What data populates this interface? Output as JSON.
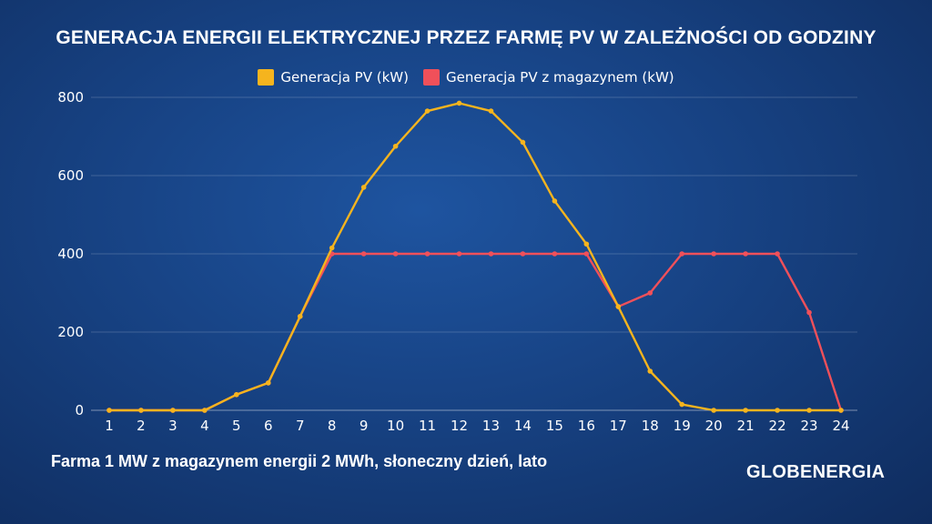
{
  "header": {
    "title": "GENERACJA ENERGII ELEKTRYCZNEJ PRZEZ FARMĘ PV W ZALEŻNOŚCI OD GODZINY"
  },
  "footer": {
    "subtitle": "Farma 1 MW z magazynem energii 2 MWh, słoneczny dzień, lato",
    "logo": "GLOBENERGIA"
  },
  "colors": {
    "background": "#174283",
    "pv": "#f5b41e",
    "pv_storage": "#f0505a"
  },
  "chart_data": {
    "type": "line",
    "title": "GENERACJA ENERGII ELEKTRYCZNEJ PRZEZ FARMĘ PV W ZALEŻNOŚCI OD GODZINY",
    "xlabel": "",
    "ylabel": "",
    "x": [
      1,
      2,
      3,
      4,
      5,
      6,
      7,
      8,
      9,
      10,
      11,
      12,
      13,
      14,
      15,
      16,
      17,
      18,
      19,
      20,
      21,
      22,
      23,
      24
    ],
    "ylim": [
      0,
      800
    ],
    "yticks": [
      0,
      200,
      400,
      600,
      800
    ],
    "grid": true,
    "legend_position": "top-center",
    "series": [
      {
        "name": "Generacja PV (kW)",
        "color": "#f5b41e",
        "values": [
          0,
          0,
          0,
          0,
          40,
          70,
          240,
          415,
          570,
          675,
          765,
          785,
          765,
          685,
          535,
          425,
          265,
          100,
          15,
          0,
          0,
          0,
          0,
          0
        ]
      },
      {
        "name": "Generacja PV z magazynem (kW)",
        "color": "#f0505a",
        "values": [
          0,
          0,
          0,
          0,
          40,
          70,
          240,
          400,
          400,
          400,
          400,
          400,
          400,
          400,
          400,
          400,
          265,
          300,
          400,
          400,
          400,
          400,
          250,
          0
        ]
      }
    ]
  }
}
